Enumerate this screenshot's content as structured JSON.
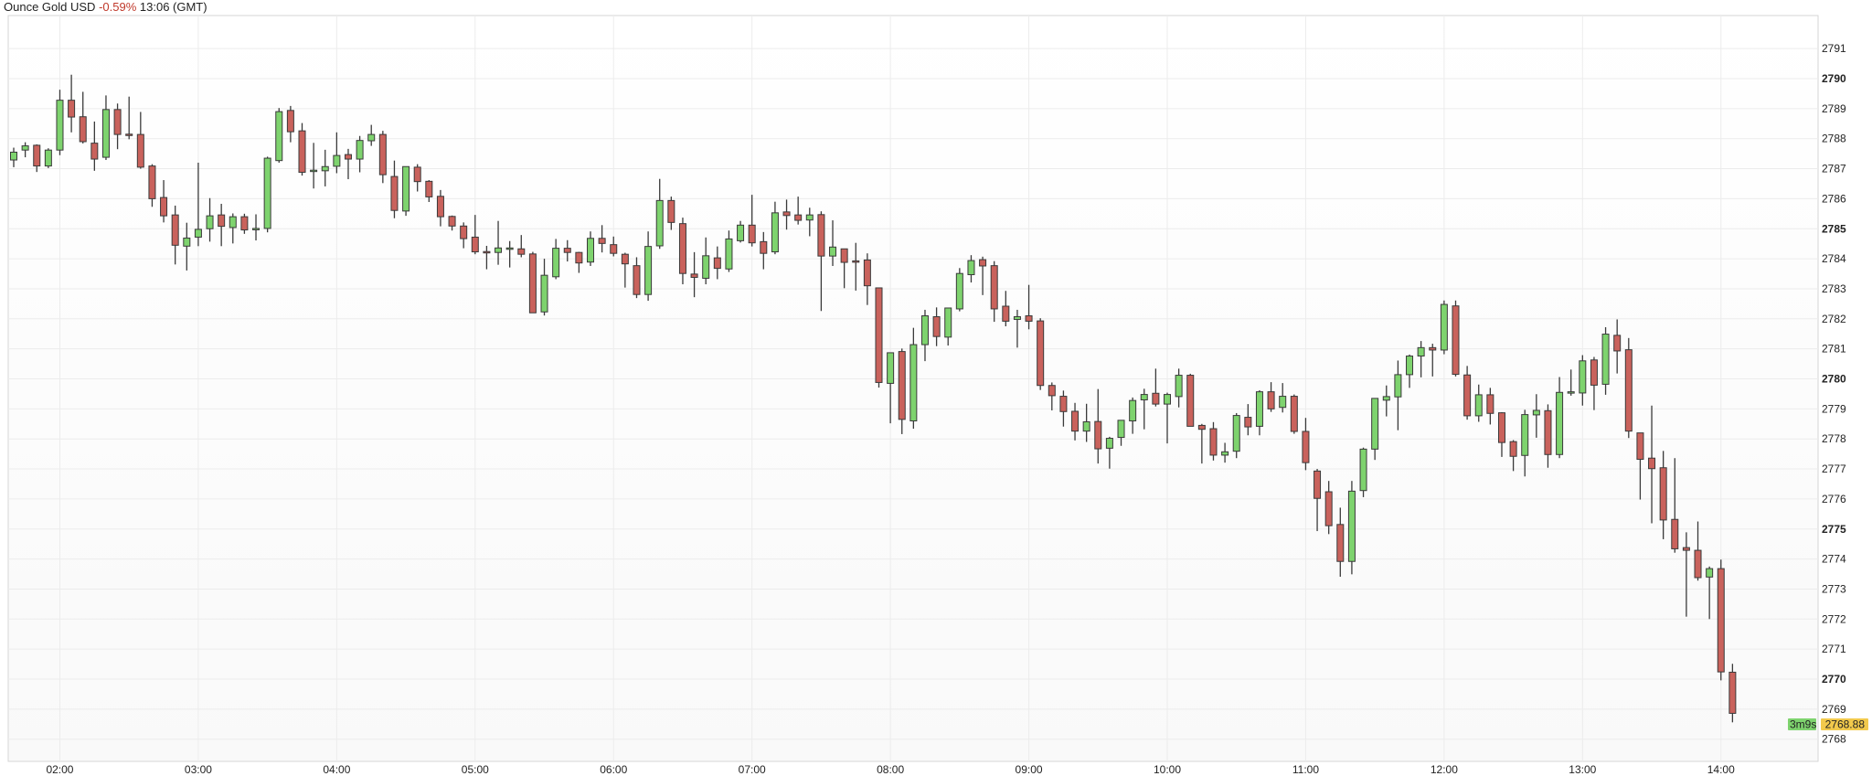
{
  "header": {
    "instrument": "Ounce Gold USD",
    "change": "-0.59%",
    "time": "13:06 (GMT)"
  },
  "current_price_label": "2768.88",
  "countdown_label": "3m9s",
  "colors": {
    "up": "#7ed36e",
    "down": "#c9625c",
    "outline": "#3a3a3a",
    "change_negative": "#c0392b",
    "price_tag": "#f2c94c",
    "timer_tag": "#7ed36e",
    "grid": "#ececec"
  },
  "chart_data": {
    "type": "candlestick",
    "title": "Ounce Gold USD",
    "interval_minutes": 5,
    "start_time": "01:40",
    "x_ticks": [
      "02:00",
      "03:00",
      "04:00",
      "05:00",
      "06:00",
      "07:00",
      "08:00",
      "09:00",
      "10:00",
      "11:00",
      "12:00",
      "13:00",
      "14:00"
    ],
    "y_ticks": [
      2768,
      2769,
      2770,
      2771,
      2772,
      2773,
      2774,
      2775,
      2776,
      2777,
      2778,
      2779,
      2780,
      2781,
      2782,
      2783,
      2784,
      2785,
      2786,
      2787,
      2788,
      2789,
      2790,
      2791
    ],
    "y_major_ticks": [
      2770,
      2775,
      2780,
      2785,
      2790
    ],
    "ylim": [
      2767.33,
      2792.2
    ],
    "grid": true,
    "current_price": 2768.88,
    "ohlc_fields": [
      "open",
      "high",
      "low",
      "close"
    ],
    "ohlc": [
      [
        2787.29,
        2787.7,
        2787.05,
        2787.55
      ],
      [
        2787.62,
        2787.88,
        2787.38,
        2787.76
      ],
      [
        2787.78,
        2787.81,
        2786.89,
        2787.09
      ],
      [
        2787.09,
        2787.68,
        2787.02,
        2787.62
      ],
      [
        2787.62,
        2789.63,
        2787.45,
        2789.28
      ],
      [
        2789.28,
        2790.13,
        2788.21,
        2788.72
      ],
      [
        2788.73,
        2789.56,
        2787.84,
        2787.9
      ],
      [
        2787.85,
        2788.57,
        2786.93,
        2787.32
      ],
      [
        2787.38,
        2789.44,
        2787.29,
        2788.97
      ],
      [
        2788.97,
        2789.17,
        2787.65,
        2788.14
      ],
      [
        2788.15,
        2789.4,
        2787.98,
        2788.11
      ],
      [
        2788.14,
        2788.89,
        2787.0,
        2787.05
      ],
      [
        2787.09,
        2787.15,
        2785.73,
        2786.0
      ],
      [
        2786.04,
        2786.62,
        2785.21,
        2785.43
      ],
      [
        2785.46,
        2785.77,
        2783.81,
        2784.45
      ],
      [
        2784.42,
        2785.2,
        2783.61,
        2784.69
      ],
      [
        2784.72,
        2787.2,
        2784.42,
        2784.98
      ],
      [
        2785.0,
        2786.02,
        2784.57,
        2785.43
      ],
      [
        2785.46,
        2785.83,
        2784.42,
        2785.08
      ],
      [
        2785.04,
        2785.51,
        2784.51,
        2785.4
      ],
      [
        2785.4,
        2785.5,
        2784.83,
        2784.96
      ],
      [
        2784.99,
        2785.48,
        2784.61,
        2785.01
      ],
      [
        2785.01,
        2787.4,
        2784.88,
        2787.35
      ],
      [
        2787.27,
        2789.02,
        2787.2,
        2788.9
      ],
      [
        2788.94,
        2789.09,
        2787.88,
        2788.23
      ],
      [
        2788.26,
        2788.52,
        2786.77,
        2786.88
      ],
      [
        2786.92,
        2787.86,
        2786.34,
        2786.95
      ],
      [
        2786.93,
        2787.63,
        2786.41,
        2787.07
      ],
      [
        2787.08,
        2788.21,
        2786.85,
        2787.44
      ],
      [
        2787.47,
        2787.66,
        2786.65,
        2787.32
      ],
      [
        2787.32,
        2788.09,
        2786.88,
        2787.94
      ],
      [
        2787.93,
        2788.46,
        2787.76,
        2788.14
      ],
      [
        2788.14,
        2788.26,
        2786.52,
        2786.8
      ],
      [
        2786.74,
        2787.27,
        2785.35,
        2785.61
      ],
      [
        2785.59,
        2787.07,
        2785.43,
        2787.07
      ],
      [
        2787.05,
        2787.15,
        2786.24,
        2786.57
      ],
      [
        2786.58,
        2786.62,
        2785.89,
        2786.06
      ],
      [
        2786.08,
        2786.29,
        2785.08,
        2785.4
      ],
      [
        2785.41,
        2785.44,
        2784.94,
        2785.09
      ],
      [
        2785.09,
        2785.21,
        2784.35,
        2784.67
      ],
      [
        2784.72,
        2785.46,
        2784.15,
        2784.23
      ],
      [
        2784.24,
        2784.43,
        2783.65,
        2784.23
      ],
      [
        2784.21,
        2785.26,
        2783.8,
        2784.36
      ],
      [
        2784.35,
        2784.59,
        2783.71,
        2784.36
      ],
      [
        2784.33,
        2784.79,
        2784.05,
        2784.15
      ],
      [
        2784.16,
        2784.23,
        2782.2,
        2782.2
      ],
      [
        2782.23,
        2784.0,
        2782.11,
        2783.45
      ],
      [
        2783.4,
        2784.66,
        2783.32,
        2784.35
      ],
      [
        2784.35,
        2784.62,
        2783.91,
        2784.21
      ],
      [
        2784.21,
        2784.23,
        2783.53,
        2783.86
      ],
      [
        2783.89,
        2784.91,
        2783.76,
        2784.68
      ],
      [
        2784.68,
        2785.12,
        2784.21,
        2784.51
      ],
      [
        2784.47,
        2784.74,
        2784.08,
        2784.18
      ],
      [
        2784.15,
        2784.2,
        2783.04,
        2783.83
      ],
      [
        2783.77,
        2784.05,
        2782.69,
        2782.81
      ],
      [
        2782.81,
        2784.91,
        2782.6,
        2784.41
      ],
      [
        2784.43,
        2786.66,
        2784.33,
        2785.94
      ],
      [
        2785.94,
        2786.07,
        2784.96,
        2785.21
      ],
      [
        2785.17,
        2785.37,
        2783.15,
        2783.51
      ],
      [
        2783.49,
        2784.22,
        2782.72,
        2783.38
      ],
      [
        2783.35,
        2784.71,
        2783.15,
        2784.1
      ],
      [
        2784.03,
        2784.41,
        2783.32,
        2783.68
      ],
      [
        2783.66,
        2784.94,
        2783.56,
        2784.66
      ],
      [
        2784.6,
        2785.26,
        2784.54,
        2785.12
      ],
      [
        2785.12,
        2786.13,
        2784.41,
        2784.53
      ],
      [
        2784.57,
        2784.89,
        2783.65,
        2784.18
      ],
      [
        2784.23,
        2785.9,
        2784.15,
        2785.53
      ],
      [
        2785.56,
        2785.97,
        2784.97,
        2785.44
      ],
      [
        2785.46,
        2786.07,
        2785.14,
        2785.28
      ],
      [
        2785.29,
        2785.7,
        2784.75,
        2785.46
      ],
      [
        2785.47,
        2785.58,
        2782.26,
        2784.09
      ],
      [
        2784.09,
        2785.28,
        2783.76,
        2784.39
      ],
      [
        2784.33,
        2784.33,
        2783.02,
        2783.88
      ],
      [
        2783.93,
        2784.53,
        2782.94,
        2783.92
      ],
      [
        2783.96,
        2784.18,
        2782.46,
        2783.1
      ],
      [
        2783.03,
        2783.03,
        2779.71,
        2779.88
      ],
      [
        2779.85,
        2780.87,
        2778.52,
        2780.87
      ],
      [
        2780.91,
        2781.01,
        2778.16,
        2778.65
      ],
      [
        2778.6,
        2781.7,
        2778.34,
        2781.14
      ],
      [
        2781.14,
        2782.3,
        2780.59,
        2782.1
      ],
      [
        2782.07,
        2782.38,
        2781.09,
        2781.41
      ],
      [
        2781.39,
        2782.36,
        2781.11,
        2782.36
      ],
      [
        2782.33,
        2783.69,
        2782.25,
        2783.51
      ],
      [
        2783.47,
        2784.12,
        2783.21,
        2783.94
      ],
      [
        2783.97,
        2784.07,
        2782.79,
        2783.76
      ],
      [
        2783.77,
        2783.92,
        2781.9,
        2782.33
      ],
      [
        2782.42,
        2782.93,
        2781.75,
        2781.92
      ],
      [
        2781.98,
        2782.3,
        2781.04,
        2782.07
      ],
      [
        2782.1,
        2783.13,
        2781.65,
        2781.92
      ],
      [
        2781.93,
        2782.02,
        2779.63,
        2779.78
      ],
      [
        2779.78,
        2779.88,
        2778.95,
        2779.44
      ],
      [
        2779.42,
        2779.61,
        2778.41,
        2778.91
      ],
      [
        2778.92,
        2779.2,
        2777.95,
        2778.26
      ],
      [
        2778.26,
        2779.17,
        2777.9,
        2778.57
      ],
      [
        2778.58,
        2779.66,
        2777.18,
        2777.67
      ],
      [
        2777.69,
        2778.07,
        2777.01,
        2778.02
      ],
      [
        2778.05,
        2778.62,
        2777.77,
        2778.62
      ],
      [
        2778.6,
        2779.38,
        2778.17,
        2779.28
      ],
      [
        2779.3,
        2779.67,
        2778.32,
        2779.48
      ],
      [
        2779.52,
        2780.34,
        2779.08,
        2779.16
      ],
      [
        2779.16,
        2779.54,
        2777.85,
        2779.48
      ],
      [
        2779.41,
        2780.34,
        2779.05,
        2780.12
      ],
      [
        2780.12,
        2780.17,
        2778.42,
        2778.42
      ],
      [
        2778.45,
        2778.5,
        2777.18,
        2778.32
      ],
      [
        2778.34,
        2778.56,
        2777.28,
        2777.46
      ],
      [
        2777.46,
        2777.87,
        2777.21,
        2777.57
      ],
      [
        2777.59,
        2778.86,
        2777.36,
        2778.78
      ],
      [
        2778.72,
        2779.16,
        2778.12,
        2778.4
      ],
      [
        2778.42,
        2779.62,
        2778.12,
        2779.57
      ],
      [
        2779.57,
        2779.89,
        2778.9,
        2779.0
      ],
      [
        2779.05,
        2779.86,
        2778.88,
        2779.42
      ],
      [
        2779.42,
        2779.48,
        2778.17,
        2778.25
      ],
      [
        2778.25,
        2778.7,
        2776.96,
        2777.21
      ],
      [
        2776.93,
        2777.0,
        2774.93,
        2776.02
      ],
      [
        2776.24,
        2776.6,
        2774.83,
        2775.11
      ],
      [
        2775.15,
        2775.71,
        2773.41,
        2773.92
      ],
      [
        2773.92,
        2776.6,
        2773.49,
        2776.26
      ],
      [
        2776.28,
        2777.71,
        2776.06,
        2777.66
      ],
      [
        2777.66,
        2779.35,
        2777.3,
        2779.35
      ],
      [
        2779.29,
        2779.78,
        2778.75,
        2779.41
      ],
      [
        2779.4,
        2780.61,
        2778.29,
        2780.14
      ],
      [
        2780.14,
        2780.81,
        2779.7,
        2780.76
      ],
      [
        2780.76,
        2781.26,
        2780.05,
        2781.04
      ],
      [
        2781.04,
        2781.17,
        2780.08,
        2780.96
      ],
      [
        2780.96,
        2782.61,
        2780.82,
        2782.48
      ],
      [
        2782.43,
        2782.61,
        2780.08,
        2780.15
      ],
      [
        2780.13,
        2780.43,
        2778.64,
        2778.77
      ],
      [
        2778.77,
        2779.81,
        2778.57,
        2779.47
      ],
      [
        2779.47,
        2779.7,
        2778.48,
        2778.85
      ],
      [
        2778.87,
        2778.89,
        2777.4,
        2777.88
      ],
      [
        2777.91,
        2777.96,
        2776.93,
        2777.42
      ],
      [
        2777.45,
        2778.97,
        2776.75,
        2778.81
      ],
      [
        2778.8,
        2779.49,
        2778.04,
        2778.95
      ],
      [
        2778.94,
        2779.15,
        2777.04,
        2777.48
      ],
      [
        2777.48,
        2780.06,
        2777.36,
        2779.55
      ],
      [
        2779.57,
        2780.31,
        2779.44,
        2779.57
      ],
      [
        2779.53,
        2780.79,
        2779.11,
        2780.6
      ],
      [
        2780.63,
        2780.73,
        2778.96,
        2779.79
      ],
      [
        2779.82,
        2781.72,
        2779.47,
        2781.49
      ],
      [
        2781.45,
        2781.98,
        2780.18,
        2780.93
      ],
      [
        2780.97,
        2781.36,
        2778.03,
        2778.26
      ],
      [
        2778.2,
        2778.2,
        2775.98,
        2777.32
      ],
      [
        2777.36,
        2779.11,
        2775.19,
        2777.01
      ],
      [
        2777.04,
        2777.6,
        2774.66,
        2775.3
      ],
      [
        2775.32,
        2777.36,
        2774.21,
        2774.34
      ],
      [
        2774.38,
        2774.89,
        2772.08,
        2774.29
      ],
      [
        2774.29,
        2775.25,
        2773.28,
        2773.38
      ],
      [
        2773.4,
        2773.75,
        2772.0,
        2773.68
      ],
      [
        2773.68,
        2773.98,
        2769.96,
        2770.24
      ],
      [
        2770.23,
        2770.51,
        2768.56,
        2768.86
      ]
    ]
  }
}
